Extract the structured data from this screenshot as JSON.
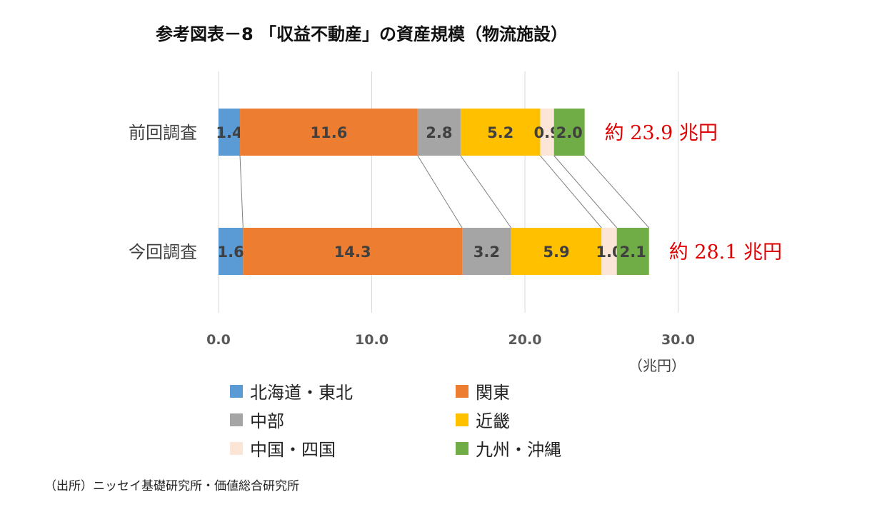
{
  "title": "参考図表－8 「収益不動産」の資産規模（物流施設）",
  "unit_label": "（兆円）",
  "source": "（出所）ニッセイ基礎研究所・価値総合研究所",
  "chart_data": {
    "type": "bar",
    "orientation": "horizontal",
    "stacked": true,
    "categories": [
      "前回調査",
      "今回調査"
    ],
    "series": [
      {
        "name": "北海道・東北",
        "color": "#5B9BD5",
        "values": [
          1.4,
          1.6
        ]
      },
      {
        "name": "関東",
        "color": "#ED7D31",
        "values": [
          11.6,
          14.3
        ]
      },
      {
        "name": "中部",
        "color": "#A5A5A5",
        "values": [
          2.8,
          3.2
        ]
      },
      {
        "name": "近畿",
        "color": "#FFC000",
        "values": [
          5.2,
          5.9
        ]
      },
      {
        "name": "中国・四国",
        "color": "#FBE5D6",
        "values": [
          0.9,
          1.0
        ]
      },
      {
        "name": "九州・沖縄",
        "color": "#70AD47",
        "values": [
          2.0,
          2.1
        ]
      }
    ],
    "totals": [
      "約 23.9 兆円",
      "約 28.1 兆円"
    ],
    "total_color": "#E00000",
    "xlim": [
      0,
      30
    ],
    "xticks": [
      "0.0",
      "10.0",
      "20.0",
      "30.0"
    ],
    "grid": true,
    "legend_position": "bottom"
  }
}
